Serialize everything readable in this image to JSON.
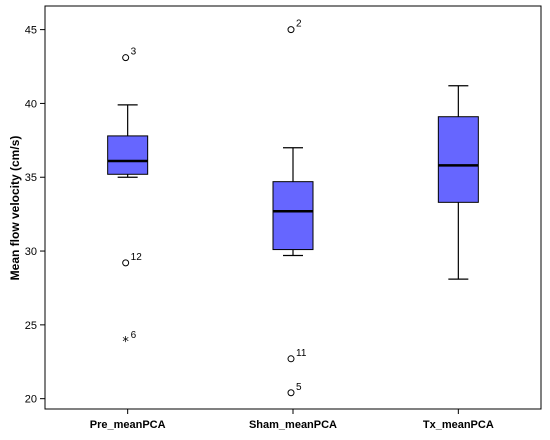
{
  "chart_data": {
    "type": "boxplot",
    "title": "",
    "xlabel": "",
    "ylabel": "Mean flow velocity (cm/s)",
    "ylim": [
      19.3,
      46.6
    ],
    "yticks": [
      20,
      25,
      30,
      35,
      40,
      45
    ],
    "grid": false,
    "categories": [
      "Pre_meanPCA",
      "Sham_meanPCA",
      "Tx_meanPCA"
    ],
    "colors": {
      "box_fill": "#6666ff",
      "frame": "#000000",
      "background": "#ffffff"
    },
    "boxes": [
      {
        "category": "Pre_meanPCA",
        "whisker_low": 35.0,
        "q1": 35.2,
        "median": 36.1,
        "q3": 37.8,
        "whisker_high": 39.9,
        "outliers": [
          {
            "value": 43.1,
            "label": "3",
            "marker": "circle"
          },
          {
            "value": 29.2,
            "label": "12",
            "marker": "circle"
          },
          {
            "value": 23.9,
            "label": "6",
            "marker": "star"
          }
        ]
      },
      {
        "category": "Sham_meanPCA",
        "whisker_low": 29.7,
        "q1": 30.1,
        "median": 32.7,
        "q3": 34.7,
        "whisker_high": 37.0,
        "outliers": [
          {
            "value": 45.0,
            "label": "2",
            "marker": "circle"
          },
          {
            "value": 22.7,
            "label": "11",
            "marker": "circle"
          },
          {
            "value": 20.4,
            "label": "5",
            "marker": "circle"
          }
        ]
      },
      {
        "category": "Tx_meanPCA",
        "whisker_low": 28.1,
        "q1": 33.3,
        "median": 35.8,
        "q3": 39.1,
        "whisker_high": 41.2,
        "outliers": []
      }
    ]
  }
}
